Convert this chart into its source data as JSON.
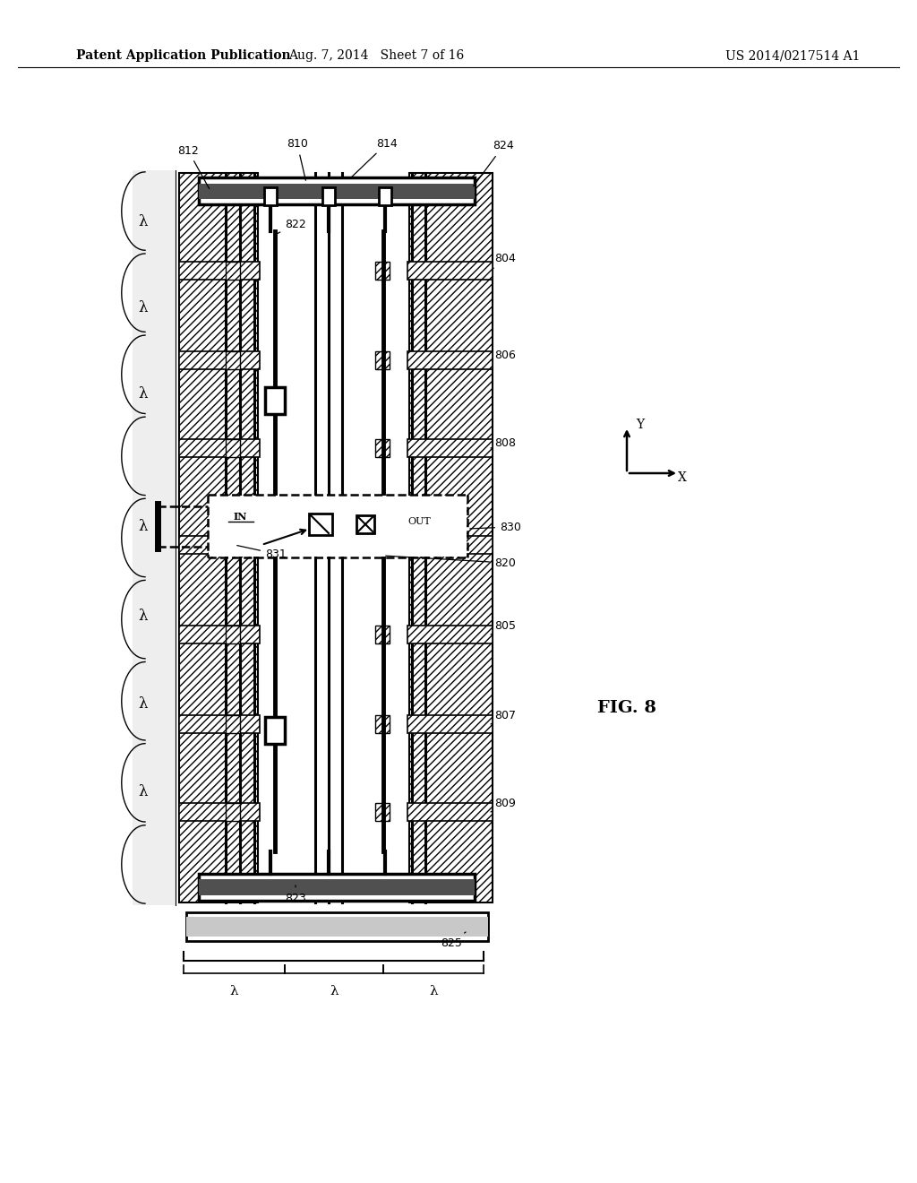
{
  "bg_color": "#ffffff",
  "header_left": "Patent Application Publication",
  "header_mid": "Aug. 7, 2014   Sheet 7 of 16",
  "header_right": "US 2014/0217514 A1",
  "fig_label": "FIG. 8",
  "label_fontsize": 9,
  "header_fontsize": 10,
  "fig_fontsize": 14,
  "ML": 200,
  "MR": 545,
  "MT": 190,
  "MB": 1010
}
